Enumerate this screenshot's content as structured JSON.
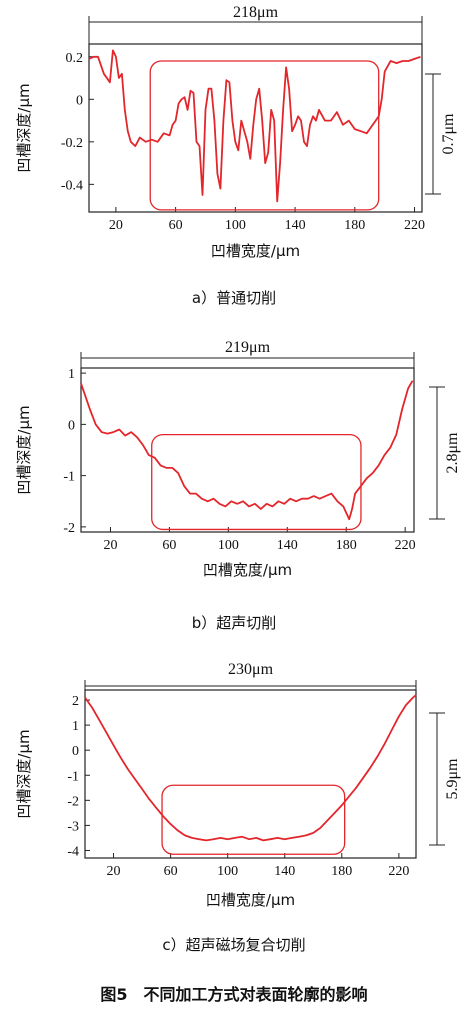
{
  "figure_caption": "图5　不同加工方式对表面轮廓的影响",
  "chart_data": [
    {
      "type": "line",
      "caption": "a）普通切削",
      "xlabel": "凹槽宽度/μm",
      "ylabel": "凹槽深度/μm",
      "xlim": [
        2,
        225
      ],
      "ylim": [
        -0.53,
        0.26
      ],
      "xticks": [
        20,
        60,
        100,
        140,
        180,
        220
      ],
      "xtick_labels": [
        "20",
        "60",
        "100",
        "140",
        "180",
        "220"
      ],
      "yticks": [
        0.2,
        0,
        -0.2,
        -0.4
      ],
      "ytick_labels": [
        "0.2",
        "0",
        "-0.2",
        "-0.4"
      ],
      "width_label": "218μm",
      "depth_label": "0.7μm",
      "highlight_box": {
        "x": [
          43,
          196
        ],
        "y": [
          -0.52,
          0.18
        ]
      },
      "x": [
        2,
        5,
        8,
        12,
        16,
        18,
        20,
        22,
        24,
        26,
        28,
        30,
        33,
        36,
        40,
        44,
        48,
        52,
        56,
        58,
        60,
        62,
        64,
        66,
        68,
        70,
        72,
        74,
        76,
        78,
        80,
        82,
        84,
        86,
        88,
        90,
        92,
        94,
        96,
        98,
        100,
        102,
        104,
        106,
        108,
        110,
        112,
        114,
        116,
        118,
        120,
        122,
        124,
        126,
        128,
        130,
        132,
        134,
        136,
        138,
        140,
        142,
        144,
        146,
        148,
        150,
        152,
        154,
        156,
        160,
        164,
        168,
        172,
        176,
        180,
        184,
        188,
        192,
        194,
        196,
        198,
        200,
        204,
        208,
        212,
        216,
        220,
        224
      ],
      "y": [
        0.19,
        0.2,
        0.2,
        0.12,
        0.08,
        0.23,
        0.2,
        0.1,
        0.12,
        -0.05,
        -0.15,
        -0.2,
        -0.22,
        -0.18,
        -0.2,
        -0.19,
        -0.2,
        -0.16,
        -0.17,
        -0.12,
        -0.1,
        -0.02,
        0.0,
        0.01,
        -0.05,
        0.04,
        0.03,
        -0.2,
        -0.22,
        -0.45,
        -0.05,
        0.05,
        0.05,
        -0.1,
        -0.35,
        -0.42,
        -0.1,
        0.09,
        0.08,
        -0.1,
        -0.2,
        -0.24,
        -0.1,
        -0.15,
        -0.2,
        -0.28,
        -0.12,
        0.0,
        0.05,
        -0.1,
        -0.3,
        -0.25,
        -0.05,
        -0.1,
        -0.48,
        -0.3,
        -0.05,
        0.15,
        0.05,
        -0.15,
        -0.12,
        -0.08,
        -0.1,
        -0.2,
        -0.22,
        -0.12,
        -0.08,
        -0.1,
        -0.05,
        -0.1,
        -0.1,
        -0.06,
        -0.12,
        -0.1,
        -0.14,
        -0.15,
        -0.16,
        -0.12,
        -0.1,
        -0.08,
        0.0,
        0.13,
        0.18,
        0.17,
        0.18,
        0.18,
        0.19,
        0.2
      ]
    },
    {
      "type": "line",
      "caption": "b）超声切削",
      "xlabel": "凹槽宽度/μm",
      "ylabel": "凹槽深度/μm",
      "xlim": [
        0,
        226
      ],
      "ylim": [
        -2.1,
        1.1
      ],
      "xticks": [
        20,
        60,
        100,
        140,
        180,
        220
      ],
      "xtick_labels": [
        "20",
        "60",
        "100",
        "140",
        "180",
        "220"
      ],
      "yticks": [
        1,
        0,
        -1,
        -2
      ],
      "ytick_labels": [
        "1",
        "0",
        "-1",
        "-2"
      ],
      "width_label": "219μm",
      "depth_label": "2.8μm",
      "highlight_box": {
        "x": [
          48,
          190
        ],
        "y": [
          -2.05,
          -0.2
        ]
      },
      "x": [
        0,
        3,
        6,
        10,
        14,
        18,
        22,
        26,
        30,
        34,
        38,
        42,
        46,
        50,
        54,
        58,
        62,
        66,
        70,
        74,
        78,
        82,
        86,
        90,
        94,
        98,
        102,
        106,
        110,
        114,
        118,
        122,
        126,
        130,
        134,
        138,
        142,
        146,
        150,
        154,
        158,
        162,
        166,
        170,
        174,
        178,
        182,
        184,
        186,
        190,
        194,
        198,
        202,
        206,
        210,
        214,
        218,
        222,
        225
      ],
      "y": [
        0.8,
        0.55,
        0.3,
        0.0,
        -0.15,
        -0.18,
        -0.15,
        -0.1,
        -0.22,
        -0.15,
        -0.25,
        -0.4,
        -0.6,
        -0.65,
        -0.8,
        -0.85,
        -0.85,
        -0.95,
        -1.2,
        -1.35,
        -1.35,
        -1.45,
        -1.5,
        -1.45,
        -1.55,
        -1.6,
        -1.5,
        -1.55,
        -1.5,
        -1.6,
        -1.55,
        -1.65,
        -1.55,
        -1.6,
        -1.5,
        -1.55,
        -1.45,
        -1.5,
        -1.45,
        -1.45,
        -1.4,
        -1.45,
        -1.4,
        -1.35,
        -1.5,
        -1.6,
        -1.85,
        -1.65,
        -1.35,
        -1.2,
        -1.05,
        -0.95,
        -0.8,
        -0.6,
        -0.45,
        -0.2,
        0.3,
        0.7,
        0.85
      ]
    },
    {
      "type": "line",
      "caption": "c）超声磁场复合切削",
      "xlabel": "凹槽宽度/μm",
      "ylabel": "凹槽深度/μm",
      "xlim": [
        0,
        232
      ],
      "ylim": [
        -4.3,
        2.4
      ],
      "xticks": [
        20,
        60,
        100,
        140,
        180,
        220
      ],
      "xtick_labels": [
        "20",
        "60",
        "100",
        "140",
        "180",
        "220"
      ],
      "yticks": [
        2,
        1,
        0,
        -1,
        -2,
        -3,
        -4
      ],
      "ytick_labels": [
        "2",
        "1",
        "0",
        "-1",
        "-2",
        "-3",
        "-4"
      ],
      "width_label": "230μm",
      "depth_label": "5.9μm",
      "highlight_box": {
        "x": [
          54,
          182
        ],
        "y": [
          -4.15,
          -1.4
        ]
      },
      "x": [
        0,
        5,
        10,
        15,
        20,
        25,
        30,
        35,
        40,
        45,
        50,
        55,
        60,
        65,
        70,
        75,
        80,
        85,
        90,
        95,
        100,
        105,
        110,
        115,
        120,
        125,
        130,
        135,
        140,
        145,
        150,
        155,
        160,
        165,
        170,
        175,
        180,
        185,
        190,
        195,
        200,
        205,
        210,
        215,
        220,
        225,
        230,
        232
      ],
      "y": [
        2.1,
        1.7,
        1.2,
        0.7,
        0.2,
        -0.3,
        -0.75,
        -1.15,
        -1.55,
        -1.95,
        -2.3,
        -2.65,
        -2.95,
        -3.2,
        -3.4,
        -3.5,
        -3.55,
        -3.6,
        -3.55,
        -3.5,
        -3.55,
        -3.5,
        -3.45,
        -3.55,
        -3.5,
        -3.6,
        -3.55,
        -3.5,
        -3.55,
        -3.5,
        -3.45,
        -3.4,
        -3.3,
        -3.1,
        -2.8,
        -2.5,
        -2.2,
        -1.85,
        -1.5,
        -1.1,
        -0.7,
        -0.25,
        0.25,
        0.8,
        1.35,
        1.8,
        2.1,
        2.2
      ]
    }
  ]
}
